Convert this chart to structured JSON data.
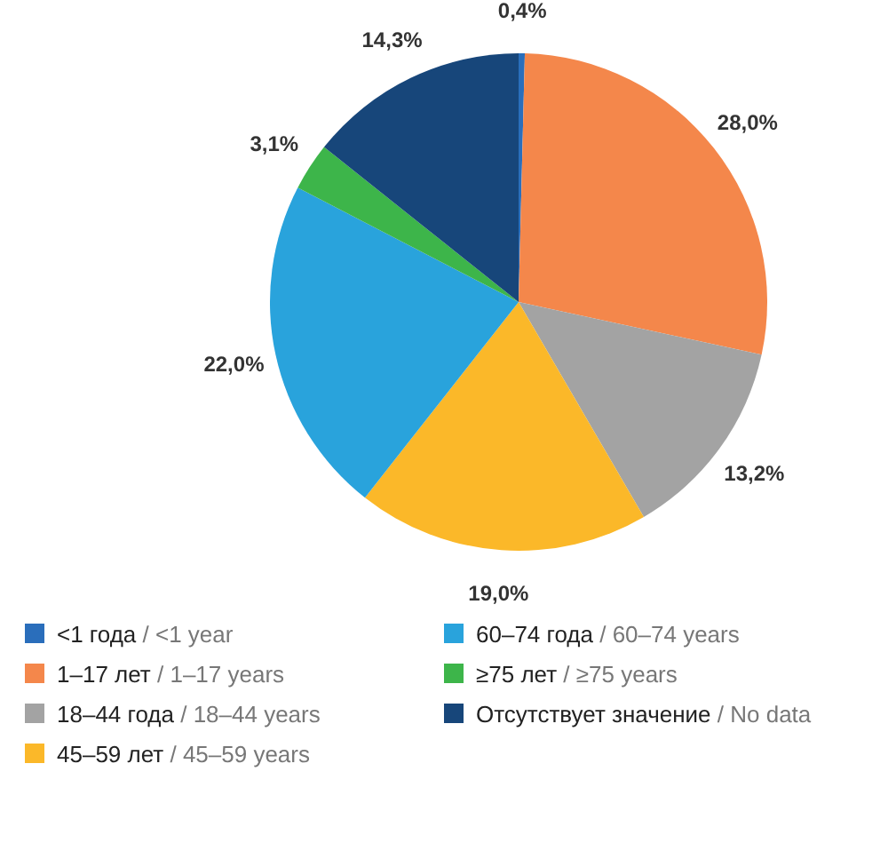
{
  "chart_data": {
    "type": "pie",
    "categories": [
      "<1 года / <1 year",
      "1–17 лет / 1–17 years",
      "18–44 года / 18–44 years",
      "45–59 лет / 45–59 years",
      "60–74 года / 60–74 years",
      "≥75 лет / ≥75 years",
      "Отсутствует значение / No data"
    ],
    "values": [
      0.4,
      28.0,
      13.2,
      19.0,
      22.0,
      3.1,
      14.3
    ],
    "colors": [
      "#2a6ebb",
      "#f4874b",
      "#a3a3a3",
      "#fbb829",
      "#29a3dc",
      "#3db54a",
      "#17467a"
    ],
    "value_labels": [
      "0,4%",
      "28,0%",
      "13,2%",
      "19,0%",
      "22,0%",
      "3,1%",
      "14,3%"
    ],
    "legend": "bottom"
  }
}
